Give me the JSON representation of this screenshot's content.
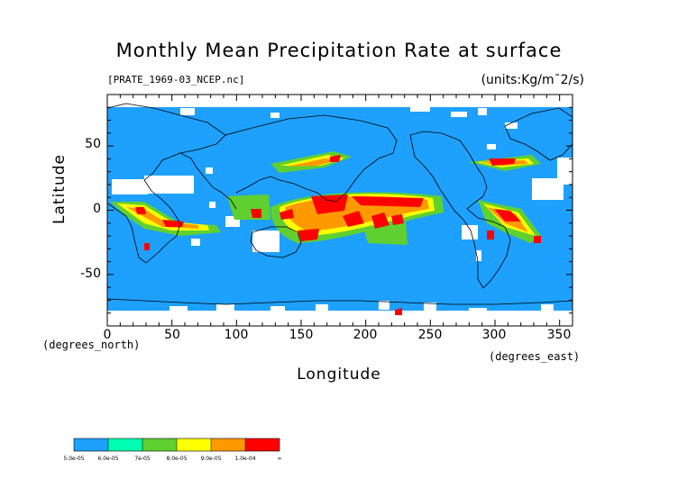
{
  "title": "Monthly Mean Precipitation Rate at surface",
  "file_label": "[PRATE_1969-03_NCEP.nc]",
  "units_label": "(units:Kg/m¯2/s)",
  "axes": {
    "ylabel": "Latitude",
    "xlabel": "Longitude",
    "y_unit": "(degrees_north)",
    "x_unit": "(degrees_east)",
    "yticks": [
      "50",
      "0",
      "-50"
    ],
    "xticks": [
      "0",
      "50",
      "100",
      "150",
      "200",
      "250",
      "300",
      "350"
    ]
  },
  "chart_data": {
    "type": "heatmap",
    "title": "Monthly Mean Precipitation Rate at surface",
    "xlabel": "Longitude",
    "ylabel": "Latitude",
    "xlim": [
      0,
      360
    ],
    "ylim": [
      -90,
      90
    ],
    "legend_placement": "bottom-left",
    "colorbar": {
      "labels": [
        "5.0e-05",
        "6.0e-05",
        "7e-05",
        "8.0e-05",
        "9.0e-05",
        "1.0e-04",
        "∞"
      ],
      "colors": [
        "#1ea0ff",
        "#00ffb0",
        "#60d030",
        "#ffff00",
        "#ff9900",
        "#ff0000"
      ],
      "no_data_color": "#ffffff"
    }
  },
  "colors": {
    "background": "#1ea0ff",
    "coast": "#000000"
  }
}
